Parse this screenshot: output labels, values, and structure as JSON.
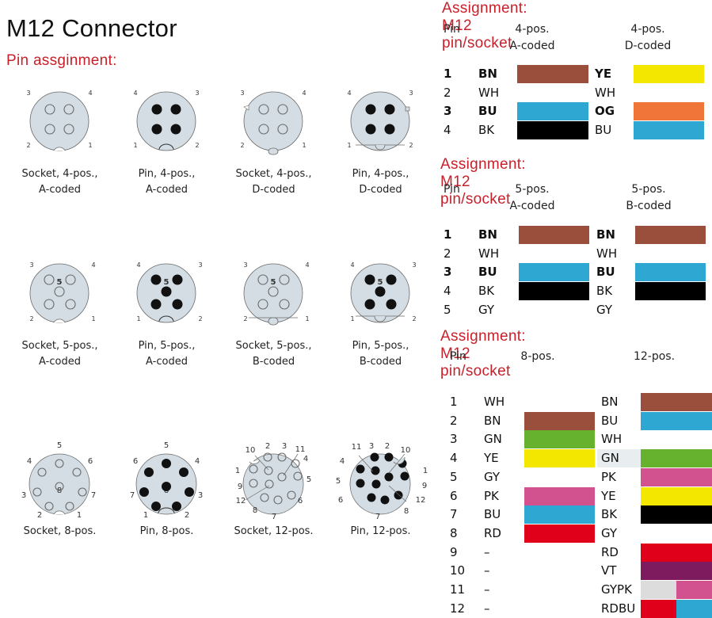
{
  "header": {
    "title": "M12 Connector",
    "subtitle": "Pin assginment:"
  },
  "connectors": [
    {
      "caption1": "Socket, 4-pos.,",
      "caption2": "A-coded",
      "labels": [
        "3",
        "4",
        "2",
        "1"
      ]
    },
    {
      "caption1": "Pin, 4-pos.,",
      "caption2": "A-coded",
      "labels": [
        "4",
        "3",
        "1",
        "2"
      ]
    },
    {
      "caption1": "Socket, 4-pos.,",
      "caption2": "D-coded",
      "labels": [
        "3",
        "4",
        "2",
        "1"
      ]
    },
    {
      "caption1": "Pin, 4-pos.,",
      "caption2": "D-coded",
      "labels": [
        "4",
        "3",
        "1",
        "2"
      ]
    },
    {
      "caption1": "Socket, 5-pos.,",
      "caption2": "A-coded",
      "labels": [
        "3",
        "4",
        "2",
        "1",
        "5"
      ]
    },
    {
      "caption1": "Pin, 5-pos.,",
      "caption2": "A-coded",
      "labels": [
        "4",
        "3",
        "1",
        "2",
        "5"
      ]
    },
    {
      "caption1": "Socket, 5-pos.,",
      "caption2": "B-coded",
      "labels": [
        "3",
        "4",
        "2",
        "1",
        "5"
      ]
    },
    {
      "caption1": "Pin, 5-pos.,",
      "caption2": "B-coded",
      "labels": [
        "4",
        "3",
        "1",
        "2",
        "5"
      ]
    },
    {
      "caption1": "Socket, 8-pos.",
      "caption2": "",
      "labels": [
        "5",
        "4",
        "6",
        "3",
        "8",
        "7",
        "2",
        "1"
      ]
    },
    {
      "caption1": "Pin, 8-pos.",
      "caption2": "",
      "labels": [
        "5",
        "6",
        "4",
        "7",
        "8",
        "3",
        "1",
        "2"
      ]
    },
    {
      "caption1": "Socket, 12-pos.",
      "caption2": "",
      "labels": [
        "10",
        "2",
        "3",
        "11",
        "4",
        "1",
        "5",
        "9",
        "12",
        "6",
        "8",
        "7"
      ]
    },
    {
      "caption1": "Pin, 12-pos.",
      "caption2": "",
      "labels": [
        "11",
        "3",
        "2",
        "10",
        "4",
        "1",
        "5",
        "9",
        "12",
        "6",
        "8",
        "7"
      ]
    }
  ],
  "colors": {
    "BN": "#9a4e3c",
    "WH": "#ffffff",
    "BU": "#2ea7d2",
    "BK": "#000000",
    "YE": "#f3e700",
    "OG": "#ef7538",
    "GY": "#ffffff",
    "GN": "#66b22f",
    "PK": "#d1528f",
    "RD": "#e0001a",
    "VT": "#7e1a5e",
    "LGY": "#dcdcdc",
    "accent_red": "#c8202a",
    "connector_fill": "#d3dde3"
  },
  "tables": [
    {
      "title": "Assignment: M12 pin/socket",
      "pin_header": "Pin",
      "col_a_header": [
        "4-pos.",
        "A-coded"
      ],
      "col_b_header": [
        "4-pos.",
        "D-coded"
      ],
      "rows": [
        {
          "pin": "1",
          "a": "BN",
          "b": "YE"
        },
        {
          "pin": "2",
          "a": "WH",
          "b": "WH"
        },
        {
          "pin": "3",
          "a": "BU",
          "b": "OG"
        },
        {
          "pin": "4",
          "a": "BK",
          "b": "BU"
        }
      ]
    },
    {
      "title": "Assignment: M12 pin/socket",
      "pin_header": "Pin",
      "col_a_header": [
        "5-pos.",
        "A-coded"
      ],
      "col_b_header": [
        "5-pos.",
        "B-coded"
      ],
      "rows": [
        {
          "pin": "1",
          "a": "BN",
          "b": "BN"
        },
        {
          "pin": "2",
          "a": "WH",
          "b": "WH"
        },
        {
          "pin": "3",
          "a": "BU",
          "b": "BU"
        },
        {
          "pin": "4",
          "a": "BK",
          "b": "BK"
        },
        {
          "pin": "5",
          "a": "GY",
          "b": "GY"
        }
      ]
    },
    {
      "title": "Assignment: M12 pin/socket",
      "pin_header": "Pin",
      "col_a_header": [
        "8-pos."
      ],
      "col_b_header": [
        "12-pos."
      ],
      "rows": [
        {
          "pin": "1",
          "a": "WH",
          "b": "BN"
        },
        {
          "pin": "2",
          "a": "BN",
          "b": "BU"
        },
        {
          "pin": "3",
          "a": "GN",
          "b": "WH"
        },
        {
          "pin": "4",
          "a": "YE",
          "b": "GN"
        },
        {
          "pin": "5",
          "a": "GY",
          "b": "PK"
        },
        {
          "pin": "6",
          "a": "PK",
          "b": "YE"
        },
        {
          "pin": "7",
          "a": "BU",
          "b": "BK"
        },
        {
          "pin": "8",
          "a": "RD",
          "b": "GY"
        },
        {
          "pin": "9",
          "a": "–",
          "b": "RD"
        },
        {
          "pin": "10",
          "a": "–",
          "b": "VT"
        },
        {
          "pin": "11",
          "a": "–",
          "b": "GYPK"
        },
        {
          "pin": "12",
          "a": "–",
          "b": "RDBU"
        }
      ]
    }
  ]
}
